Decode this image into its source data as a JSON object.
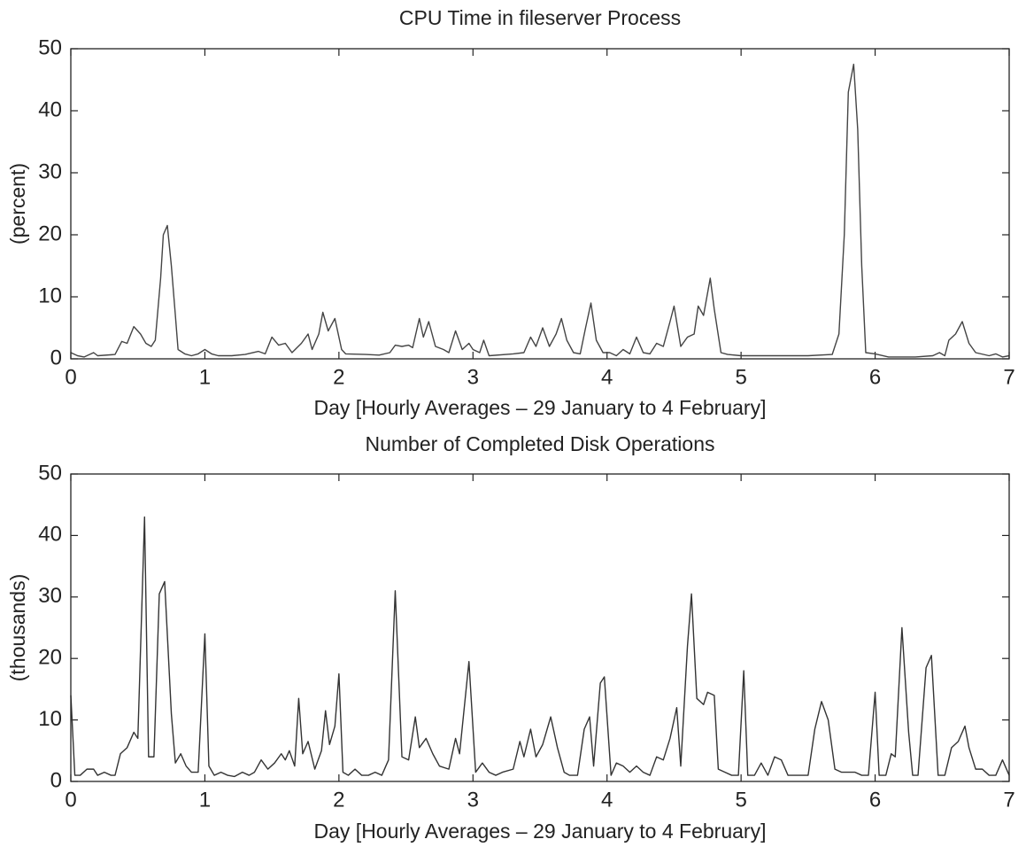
{
  "chart_data": [
    {
      "type": "line",
      "title": "CPU Time in fileserver Process",
      "xlabel": "Day [Hourly Averages – 29 January to 4 February]",
      "ylabel": "(percent)",
      "x": [
        0,
        0.05,
        0.1,
        0.17,
        0.2,
        0.33,
        0.38,
        0.42,
        0.47,
        0.52,
        0.56,
        0.6,
        0.63,
        0.67,
        0.69,
        0.72,
        0.75,
        0.78,
        0.8,
        0.85,
        0.9,
        0.95,
        1,
        1.05,
        1.1,
        1.2,
        1.3,
        1.4,
        1.45,
        1.5,
        1.55,
        1.6,
        1.65,
        1.72,
        1.77,
        1.8,
        1.85,
        1.88,
        1.92,
        1.97,
        2.02,
        2.05,
        2.2,
        2.3,
        2.38,
        2.42,
        2.47,
        2.52,
        2.55,
        2.6,
        2.63,
        2.67,
        2.72,
        2.78,
        2.82,
        2.87,
        2.92,
        2.97,
        3,
        3.05,
        3.08,
        3.12,
        3.3,
        3.38,
        3.43,
        3.47,
        3.52,
        3.57,
        3.62,
        3.66,
        3.7,
        3.75,
        3.8,
        3.84,
        3.88,
        3.92,
        3.97,
        4.02,
        4.07,
        4.12,
        4.17,
        4.22,
        4.27,
        4.32,
        4.37,
        4.42,
        4.47,
        4.5,
        4.55,
        4.6,
        4.65,
        4.68,
        4.72,
        4.77,
        4.8,
        4.85,
        4.9,
        5,
        5.2,
        5.5,
        5.68,
        5.73,
        5.77,
        5.8,
        5.84,
        5.87,
        5.9,
        5.93,
        6,
        6.1,
        6.2,
        6.3,
        6.43,
        6.48,
        6.52,
        6.55,
        6.6,
        6.65,
        6.7,
        6.75,
        6.85,
        6.9,
        6.95,
        7
      ],
      "values": [
        1,
        0.5,
        0.3,
        1,
        0.5,
        0.7,
        2.8,
        2.5,
        5.2,
        4,
        2.5,
        2,
        3,
        13,
        20,
        21.5,
        15,
        7,
        1.5,
        0.8,
        0.5,
        0.8,
        1.5,
        0.8,
        0.5,
        0.5,
        0.7,
        1.2,
        0.8,
        3.5,
        2.2,
        2.5,
        1,
        2.5,
        4,
        1.5,
        4,
        7.5,
        4.5,
        6.5,
        1.5,
        0.8,
        0.7,
        0.6,
        1,
        2.2,
        2,
        2.2,
        1.8,
        6.5,
        3.5,
        6,
        2,
        1.5,
        1,
        4.5,
        1.5,
        2.5,
        1.5,
        1,
        3,
        0.5,
        0.8,
        1,
        3.5,
        2,
        5,
        2,
        4,
        6.5,
        3,
        1,
        0.8,
        5,
        9,
        3,
        1,
        1,
        0.5,
        1.5,
        0.8,
        3.5,
        1,
        0.8,
        2.5,
        2,
        6,
        8.5,
        2,
        3.5,
        4,
        8.5,
        7,
        13,
        8,
        1,
        0.7,
        0.5,
        0.5,
        0.5,
        0.7,
        4,
        20,
        43,
        47.5,
        37,
        15,
        1,
        0.8,
        0.3,
        0.3,
        0.3,
        0.5,
        1,
        0.5,
        3,
        4,
        6,
        2.5,
        1,
        0.5,
        0.8,
        0.3,
        0.5
      ],
      "color": "#444444",
      "xlim": [
        0,
        7
      ],
      "ylim": [
        0,
        50
      ],
      "xticks": [
        0,
        1,
        2,
        3,
        4,
        5,
        6,
        7
      ],
      "yticks": [
        0,
        10,
        20,
        30,
        40,
        50
      ]
    },
    {
      "type": "line",
      "title": "Number of Completed Disk Operations",
      "xlabel": "Day [Hourly Averages – 29 January to 4 February]",
      "ylabel": "(thousands)",
      "x": [
        0,
        0.03,
        0.07,
        0.12,
        0.17,
        0.2,
        0.25,
        0.3,
        0.33,
        0.37,
        0.42,
        0.47,
        0.5,
        0.55,
        0.58,
        0.62,
        0.66,
        0.7,
        0.75,
        0.78,
        0.82,
        0.86,
        0.9,
        0.95,
        1,
        1.03,
        1.07,
        1.12,
        1.17,
        1.22,
        1.28,
        1.33,
        1.37,
        1.42,
        1.47,
        1.52,
        1.57,
        1.6,
        1.63,
        1.67,
        1.7,
        1.73,
        1.77,
        1.82,
        1.87,
        1.9,
        1.93,
        1.97,
        2,
        2.03,
        2.07,
        2.12,
        2.17,
        2.22,
        2.27,
        2.32,
        2.37,
        2.42,
        2.47,
        2.52,
        2.57,
        2.6,
        2.65,
        2.7,
        2.75,
        2.82,
        2.87,
        2.9,
        2.97,
        3.02,
        3.07,
        3.12,
        3.17,
        3.22,
        3.3,
        3.35,
        3.38,
        3.43,
        3.47,
        3.52,
        3.58,
        3.63,
        3.68,
        3.72,
        3.78,
        3.83,
        3.87,
        3.9,
        3.95,
        3.98,
        4.03,
        4.07,
        4.12,
        4.17,
        4.22,
        4.27,
        4.32,
        4.37,
        4.42,
        4.47,
        4.52,
        4.55,
        4.6,
        4.63,
        4.67,
        4.72,
        4.75,
        4.8,
        4.83,
        4.88,
        4.93,
        4.98,
        5.02,
        5.05,
        5.1,
        5.15,
        5.2,
        5.25,
        5.3,
        5.35,
        5.45,
        5.5,
        5.55,
        5.6,
        5.65,
        5.7,
        5.75,
        5.8,
        5.85,
        5.9,
        5.95,
        6,
        6.03,
        6.08,
        6.12,
        6.15,
        6.2,
        6.25,
        6.28,
        6.32,
        6.38,
        6.42,
        6.47,
        6.52,
        6.57,
        6.62,
        6.67,
        6.7,
        6.75,
        6.8,
        6.85,
        6.9,
        6.95,
        7
      ],
      "values": [
        14,
        1,
        1,
        2,
        2,
        1,
        1.5,
        1,
        1,
        4.5,
        5.5,
        8,
        7,
        43,
        4,
        4,
        30.5,
        32.5,
        11,
        3,
        4.5,
        2.5,
        1.5,
        1.5,
        24,
        2.5,
        1,
        1.5,
        1,
        0.8,
        1.5,
        1,
        1.5,
        3.5,
        2,
        3,
        4.5,
        3.5,
        5,
        2.5,
        13.5,
        4.5,
        6.5,
        2,
        5,
        11.5,
        6,
        9,
        17.5,
        1.5,
        1,
        2,
        1,
        1,
        1.5,
        1,
        3.5,
        31,
        4,
        3.5,
        10.5,
        5.5,
        7,
        4.5,
        2.5,
        2,
        7,
        4.5,
        19.5,
        1.5,
        3,
        1.5,
        1,
        1.5,
        2,
        6.5,
        4,
        8.5,
        4,
        6,
        10.5,
        5.5,
        1.5,
        1,
        1,
        8.5,
        10.5,
        2.5,
        16,
        17,
        1,
        3,
        2.5,
        1.5,
        2.5,
        1.5,
        1,
        4,
        3.5,
        7,
        12,
        2.5,
        22,
        30.5,
        13.5,
        12.5,
        14.5,
        14,
        2,
        1.5,
        1,
        1,
        18,
        1,
        1,
        3,
        1,
        4,
        3.5,
        1,
        1,
        1,
        8.5,
        13,
        10,
        2,
        1.5,
        1.5,
        1.5,
        1,
        1,
        14.5,
        1,
        1,
        4.5,
        4,
        25,
        8,
        1,
        1,
        18.5,
        20.5,
        1,
        1,
        5.5,
        6.5,
        9,
        5.5,
        2,
        2,
        1,
        1,
        3.5,
        1
      ],
      "color": "#333333",
      "xlim": [
        0,
        7
      ],
      "ylim": [
        0,
        50
      ],
      "xticks": [
        0,
        1,
        2,
        3,
        4,
        5,
        6,
        7
      ],
      "yticks": [
        0,
        10,
        20,
        30,
        40,
        50
      ]
    }
  ]
}
